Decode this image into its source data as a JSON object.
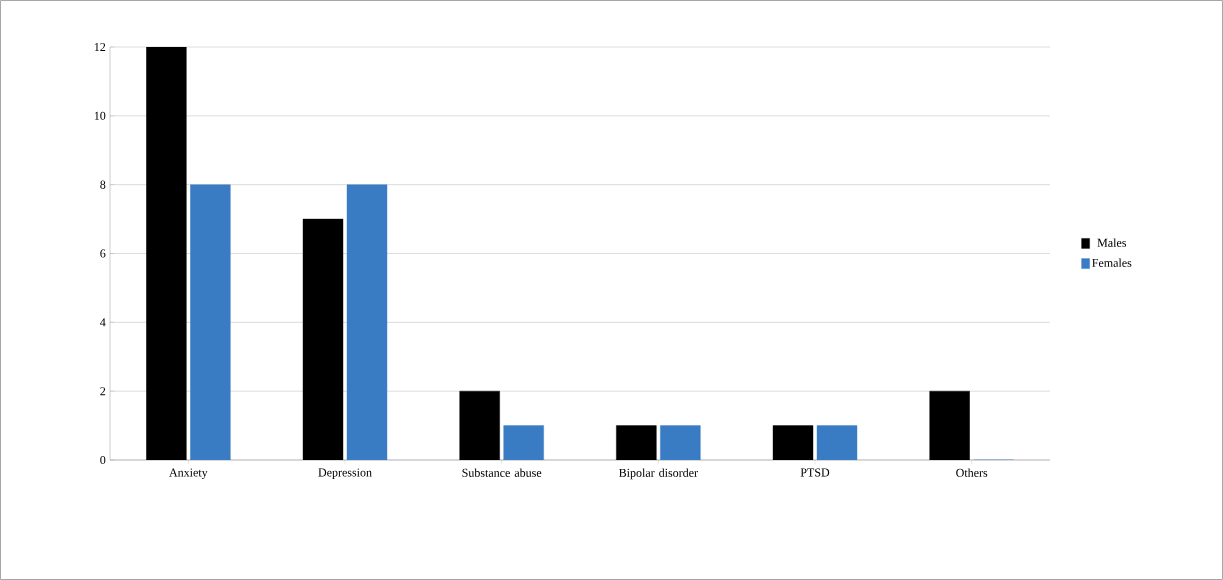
{
  "chart_data": {
    "type": "bar",
    "categories": [
      "Anxiety",
      "Depression",
      "Substance abuse",
      "Bipolar disorder",
      "PTSD",
      "Others"
    ],
    "series": [
      {
        "name": "Males",
        "color": "#000000",
        "values": [
          12,
          7,
          2,
          1,
          1,
          2
        ]
      },
      {
        "name": "Females",
        "color": "#3a7cc4",
        "values": [
          8,
          8,
          1,
          1,
          1,
          0
        ]
      }
    ],
    "ylim": [
      0,
      12
    ],
    "yticks": [
      0,
      2,
      4,
      6,
      8,
      10,
      12
    ],
    "grid": "y",
    "legend": "right"
  }
}
